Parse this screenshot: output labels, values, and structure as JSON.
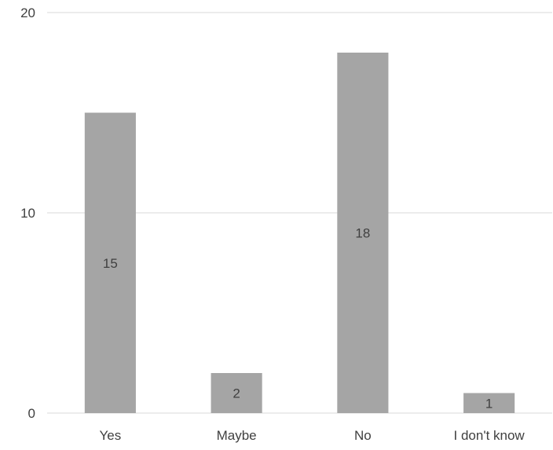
{
  "chart_data": {
    "type": "bar",
    "categories": [
      "Yes",
      "Maybe",
      "No",
      "I don't know"
    ],
    "values": [
      15,
      2,
      18,
      1
    ],
    "data_labels": [
      "15",
      "2",
      "18",
      "1"
    ],
    "yticks": [
      "0",
      "10",
      "20"
    ],
    "ylim": [
      0,
      20
    ],
    "grid": true,
    "legend": "none",
    "bar_color": "#a5a5a5",
    "gridline_color": "#d9d9d9",
    "text_color": "#404040"
  }
}
